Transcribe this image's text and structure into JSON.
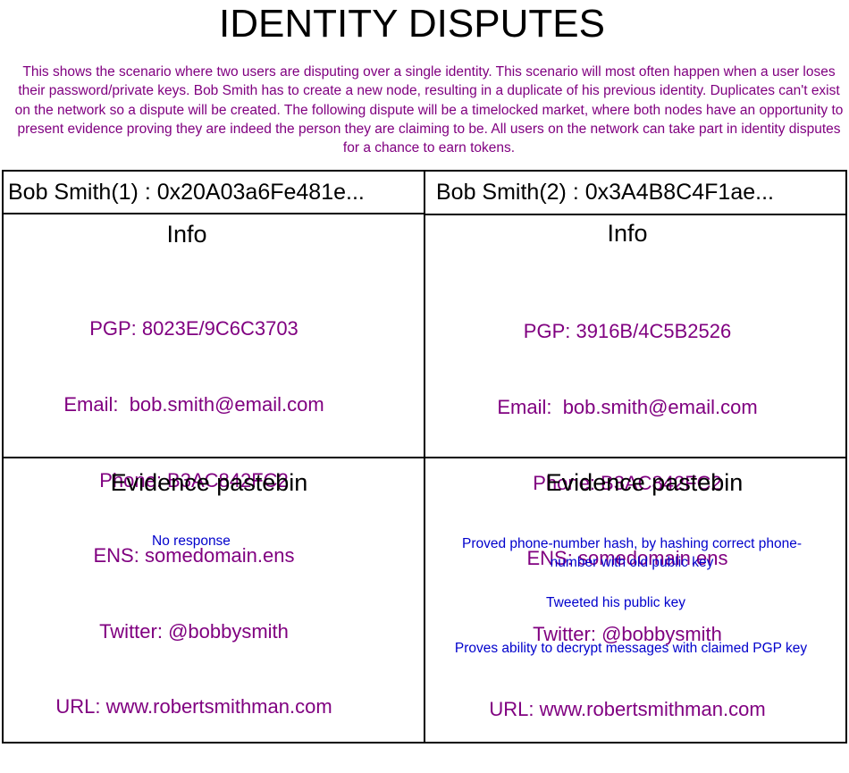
{
  "title": "IDENTITY DISPUTES",
  "description": "This shows the scenario where two users are disputing over a single identity. This scenario will most often happen when a user loses their password/private keys. Bob Smith has to create a new node, resulting in a duplicate of his previous identity. Duplicates can't exist on the network so a dispute will be created. The following dispute will be a timelocked market, where both nodes have an opportunity to present evidence proving they are indeed the person they are claiming to be. All users on the network can take part in identity disputes for a chance to earn tokens.",
  "nodes": [
    {
      "header": "Bob Smith(1) : 0x20A03a6Fe481e...",
      "info_title": "Info",
      "info": [
        "PGP: 8023E/9C6C3703",
        "Email:  bob.smith@email.com",
        "Phone: B3AC842FC2",
        "ENS: somedomain.ens",
        "Twitter: @bobbysmith",
        "URL: www.robertsmithman.com"
      ],
      "evidence_title": "Evidence pastebin",
      "evidence": [
        "No response"
      ]
    },
    {
      "header": "Bob Smith(2) : 0x3A4B8C4F1ae...",
      "info_title": "Info",
      "info": [
        "PGP: 3916B/4C5B2526",
        "Email:  bob.smith@email.com",
        "Phone: B3AC842FC2",
        "ENS: somedomain.ens",
        "Twitter: @bobbysmith",
        "URL: www.robertsmithman.com"
      ],
      "evidence_title": "Evidence pastebin",
      "evidence": [
        "Proved phone-number hash, by hashing correct phone-number with old public key",
        "Tweeted his public key",
        "Proves ability to decrypt messages with claimed PGP key"
      ]
    }
  ]
}
